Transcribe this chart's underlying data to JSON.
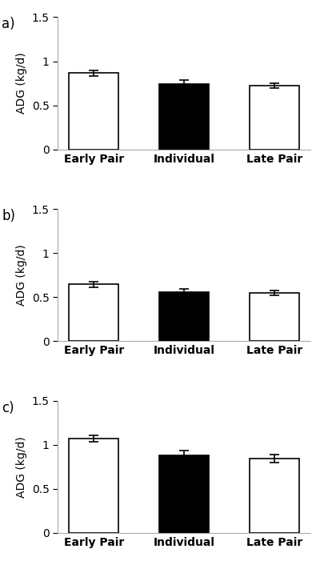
{
  "panels": [
    {
      "label": "a)",
      "categories": [
        "Early Pair",
        "Individual",
        "Late Pair"
      ],
      "values": [
        0.865,
        0.745,
        0.725
      ],
      "errors": [
        0.03,
        0.038,
        0.025
      ],
      "colors": [
        "#ffffff",
        "#000000",
        "#ffffff"
      ],
      "edgecolors": [
        "#000000",
        "#000000",
        "#000000"
      ]
    },
    {
      "label": "b)",
      "categories": [
        "Early Pair",
        "Individual",
        "Late Pair"
      ],
      "values": [
        0.645,
        0.555,
        0.55
      ],
      "errors": [
        0.03,
        0.035,
        0.028
      ],
      "colors": [
        "#ffffff",
        "#000000",
        "#ffffff"
      ],
      "edgecolors": [
        "#000000",
        "#000000",
        "#000000"
      ]
    },
    {
      "label": "c)",
      "categories": [
        "Early Pair",
        "Individual",
        "Late Pair"
      ],
      "values": [
        1.07,
        0.875,
        0.845
      ],
      "errors": [
        0.038,
        0.06,
        0.045
      ],
      "colors": [
        "#ffffff",
        "#000000",
        "#ffffff"
      ],
      "edgecolors": [
        "#000000",
        "#000000",
        "#000000"
      ]
    }
  ],
  "ylabel": "ADG (kg/d)",
  "ylim": [
    0,
    1.5
  ],
  "yticks": [
    0,
    0.5,
    1.0,
    1.5
  ],
  "ytick_labels": [
    "0",
    "0.5",
    "1",
    "1.5"
  ],
  "bar_width": 0.55,
  "figsize": [
    4.0,
    7.16
  ],
  "dpi": 100,
  "background_color": "#ffffff"
}
